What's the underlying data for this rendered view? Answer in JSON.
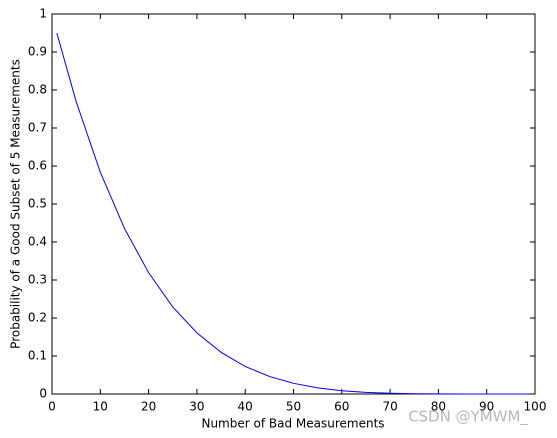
{
  "chart_data": {
    "type": "line",
    "xlabel": "Number of Bad Measurements",
    "ylabel": "Probability of a Good Subset of 5 Measurements",
    "watermark": "CSDN @YMWM_",
    "x": [
      1,
      5,
      10,
      15,
      20,
      25,
      30,
      35,
      40,
      45,
      50,
      55,
      60,
      65,
      70,
      75,
      80,
      85,
      90,
      95,
      99
    ],
    "series": [
      {
        "color": "#0000ff",
        "values": [
          0.95,
          0.7696,
          0.5838,
          0.4357,
          0.3193,
          0.2292,
          0.1608,
          0.1097,
          0.0725,
          0.0462,
          0.0281,
          0.0162,
          0.0087,
          0.0043,
          0.0019,
          0.0007,
          0.0002,
          4e-05,
          0,
          0,
          0
        ]
      }
    ],
    "xlim": [
      0,
      100
    ],
    "xticks": [
      0,
      10,
      20,
      30,
      40,
      50,
      60,
      70,
      80,
      90,
      100
    ],
    "ylim": [
      0,
      1
    ],
    "yticks": [
      0,
      0.1,
      0.2,
      0.3,
      0.4,
      0.5,
      0.6,
      0.7,
      0.8,
      0.9,
      1
    ],
    "grid": false
  }
}
